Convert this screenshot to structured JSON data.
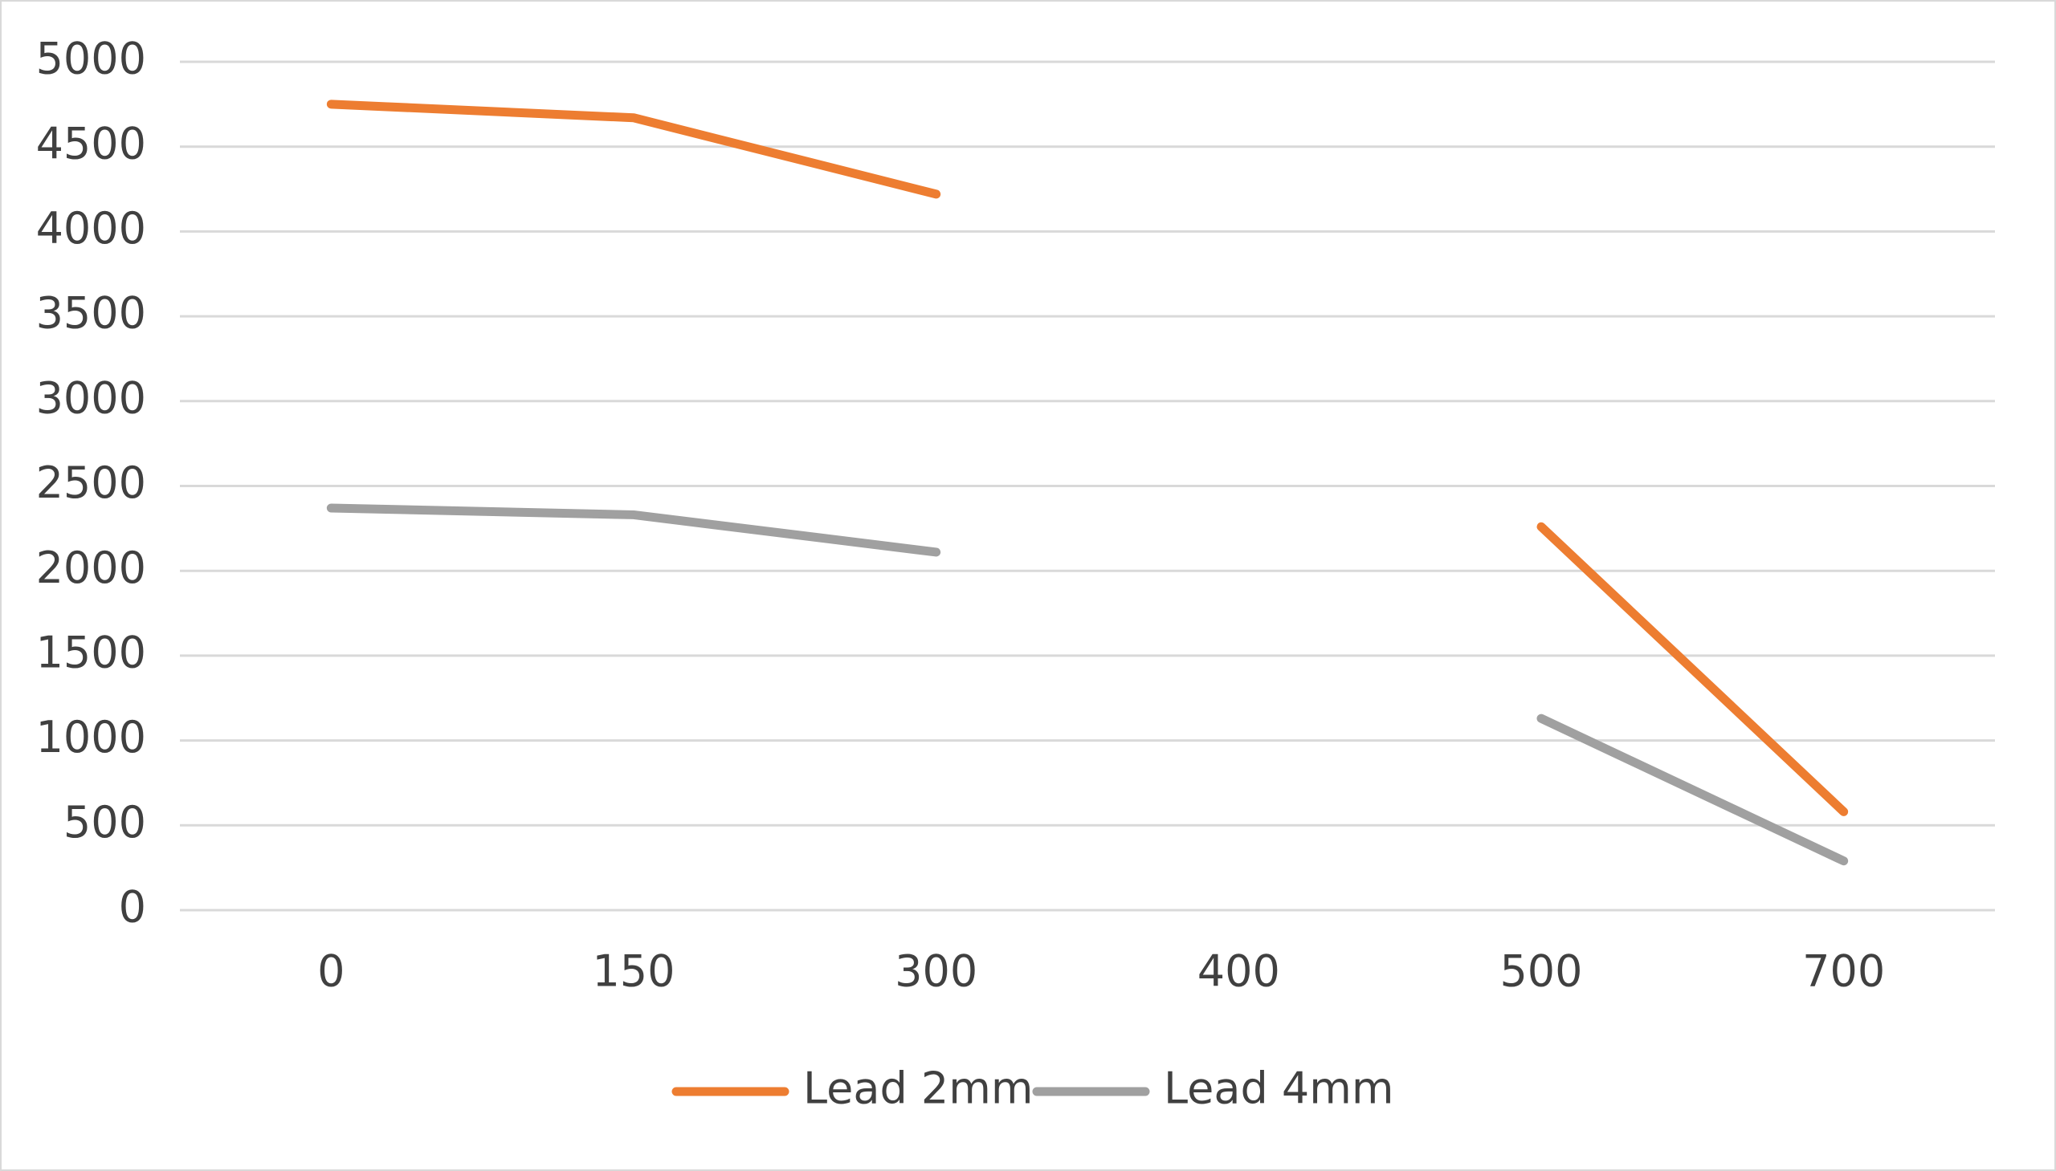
{
  "chart_data": {
    "type": "line",
    "categories": [
      "0",
      "150",
      "300",
      "400",
      "500",
      "700"
    ],
    "series": [
      {
        "name": "Lead 2mm",
        "color": "#ed7d31",
        "values": [
          4750,
          4670,
          4220,
          null,
          2260,
          580
        ]
      },
      {
        "name": "Lead 4mm",
        "color": "#a0a0a0",
        "values": [
          2370,
          2330,
          2110,
          null,
          1130,
          290
        ]
      }
    ],
    "ylim": [
      0,
      5000
    ],
    "yticks": [
      0,
      500,
      1000,
      1500,
      2000,
      2500,
      3000,
      3500,
      4000,
      4500,
      5000
    ],
    "grid": true,
    "legend": "bottom"
  }
}
